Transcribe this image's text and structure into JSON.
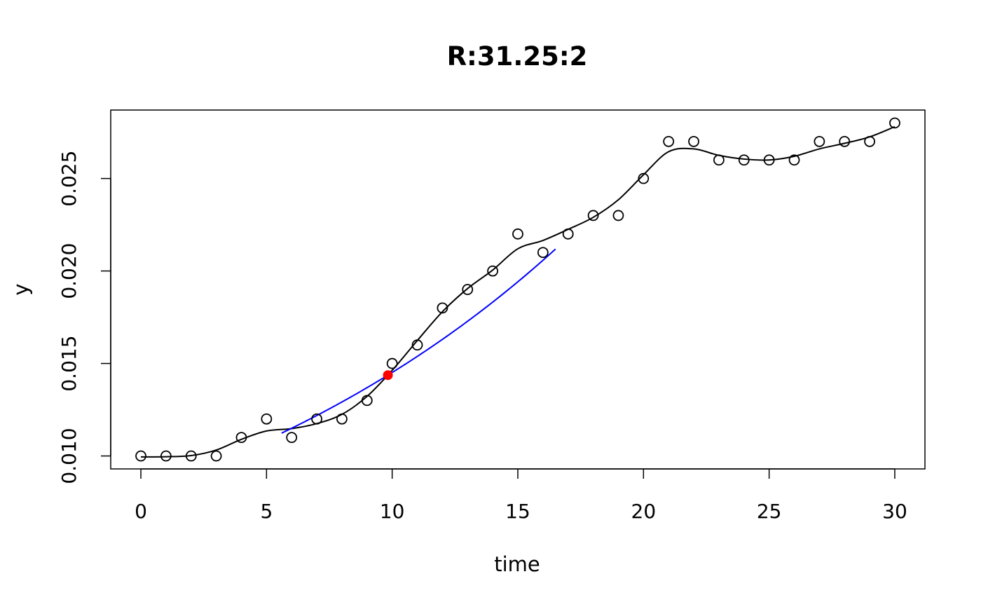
{
  "chart_data": {
    "type": "scatter",
    "title": "R:31.25:2",
    "xlabel": "time",
    "ylabel": "y",
    "xlim": [
      -1.2,
      31.2
    ],
    "ylim": [
      0.0093,
      0.0287
    ],
    "x_ticks": [
      0,
      5,
      10,
      15,
      20,
      25,
      30
    ],
    "x_tick_labels": [
      "0",
      "5",
      "10",
      "15",
      "20",
      "25",
      "30"
    ],
    "y_ticks": [
      0.01,
      0.015,
      0.02,
      0.025
    ],
    "y_tick_labels": [
      "0.010",
      "0.015",
      "0.020",
      "0.025"
    ],
    "grid": false,
    "points": {
      "x": [
        0,
        1,
        2,
        3,
        4,
        5,
        6,
        7,
        8,
        9,
        10,
        11,
        12,
        13,
        14,
        15,
        16,
        17,
        18,
        19,
        20,
        21,
        22,
        23,
        24,
        25,
        26,
        27,
        28,
        29,
        30
      ],
      "y": [
        0.01,
        0.01,
        0.01,
        0.01,
        0.011,
        0.012,
        0.011,
        0.012,
        0.012,
        0.013,
        0.015,
        0.016,
        0.018,
        0.019,
        0.02,
        0.022,
        0.021,
        0.022,
        0.023,
        0.023,
        0.025,
        0.027,
        0.027,
        0.026,
        0.026,
        0.026,
        0.026,
        0.027,
        0.027,
        0.027,
        0.028
      ],
      "color": "#000000"
    },
    "smooth_curve": {
      "x": [
        0,
        1,
        2,
        3,
        4,
        5,
        6,
        7,
        8,
        9,
        10,
        11,
        12,
        13,
        14,
        15,
        16,
        17,
        18,
        19,
        20,
        21,
        22,
        23,
        24,
        25,
        26,
        27,
        28,
        29,
        30
      ],
      "y": [
        0.00995,
        0.00996,
        0.01002,
        0.01032,
        0.0109,
        0.01135,
        0.01148,
        0.01175,
        0.01225,
        0.01322,
        0.01463,
        0.01624,
        0.0178,
        0.01905,
        0.02005,
        0.0212,
        0.02165,
        0.02225,
        0.0229,
        0.02385,
        0.0252,
        0.02645,
        0.0266,
        0.02625,
        0.02605,
        0.026,
        0.0262,
        0.0266,
        0.0269,
        0.02725,
        0.0278
      ],
      "color": "#000000"
    },
    "exp_fit": {
      "x_range": [
        5.6,
        16.5
      ],
      "x0": 9.83,
      "y0": 0.01437,
      "rate": 0.0582,
      "color": "#0000ff"
    },
    "highlight_point": {
      "x": 9.83,
      "y": 0.01437,
      "color": "#ff0000"
    }
  }
}
